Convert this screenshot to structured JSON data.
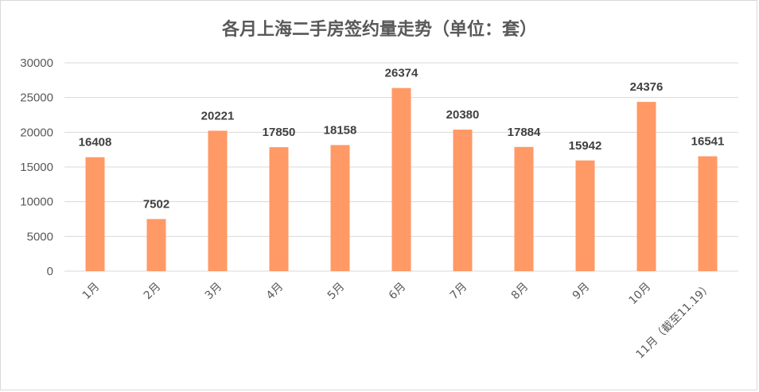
{
  "chart_data": {
    "type": "bar",
    "title": "各月上海二手房签约量走势（单位：套）",
    "categories": [
      "1月",
      "2月",
      "3月",
      "4月",
      "5月",
      "6月",
      "7月",
      "8月",
      "9月",
      "10月",
      "11月（截至11.19）"
    ],
    "values": [
      16408,
      7502,
      20221,
      17850,
      18158,
      26374,
      20380,
      17884,
      15942,
      24376,
      16541
    ],
    "data_labels": [
      "16408",
      "7502",
      "20221",
      "17850",
      "18158",
      "26374",
      "20380",
      "17884",
      "15942",
      "24376",
      "16541"
    ],
    "yticks": [
      "0",
      "5000",
      "10000",
      "15000",
      "20000",
      "25000",
      "30000"
    ],
    "ylim": [
      0,
      30000
    ],
    "xlabel": "",
    "ylabel": "",
    "grid": true,
    "legend": "none",
    "bar_color": "#ff9966"
  }
}
